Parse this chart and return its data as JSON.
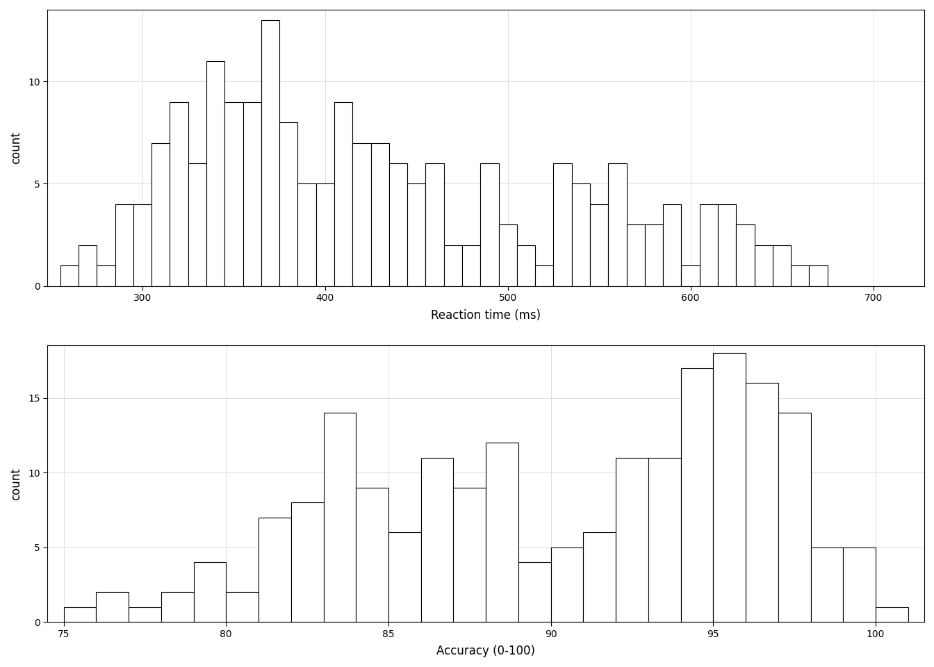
{
  "rt_bin_edges": [
    255,
    265,
    275,
    285,
    295,
    305,
    315,
    325,
    335,
    345,
    355,
    365,
    375,
    385,
    395,
    405,
    415,
    425,
    435,
    445,
    455,
    465,
    475,
    485,
    495,
    505,
    515,
    525,
    535,
    545,
    555,
    565,
    575,
    585,
    595,
    605,
    615,
    625,
    635,
    645,
    655,
    665,
    675,
    685,
    695,
    705,
    715,
    725
  ],
  "rt_counts": [
    1,
    2,
    1,
    4,
    4,
    7,
    9,
    6,
    11,
    9,
    9,
    13,
    8,
    5,
    5,
    9,
    7,
    7,
    6,
    5,
    6,
    2,
    2,
    6,
    3,
    2,
    1,
    6,
    5,
    4,
    6,
    3,
    3,
    4,
    1,
    4,
    4,
    3,
    2,
    2,
    1,
    1,
    0,
    0,
    0,
    0,
    0
  ],
  "acc_bin_edges": [
    75,
    76,
    77,
    78,
    79,
    80,
    81,
    82,
    83,
    84,
    85,
    86,
    87,
    88,
    89,
    90,
    91,
    92,
    93,
    94,
    95,
    96,
    97,
    98,
    99,
    100,
    101
  ],
  "acc_counts": [
    1,
    2,
    1,
    2,
    4,
    2,
    7,
    8,
    14,
    9,
    6,
    11,
    9,
    12,
    4,
    5,
    6,
    11,
    11,
    17,
    18,
    16,
    14,
    5,
    5,
    1
  ],
  "rt_xlabel": "Reaction time (ms)",
  "acc_xlabel": "Accuracy (0-100)",
  "ylabel": "count",
  "rt_xlim": [
    248,
    728
  ],
  "rt_ylim": [
    0,
    13.5
  ],
  "acc_xlim": [
    74.5,
    101.5
  ],
  "acc_ylim": [
    0,
    18.5
  ],
  "rt_xticks": [
    300,
    400,
    500,
    600,
    700
  ],
  "acc_xticks": [
    75,
    80,
    85,
    90,
    95,
    100
  ],
  "rt_yticks": [
    0,
    5,
    10
  ],
  "acc_yticks": [
    0,
    5,
    10,
    15
  ],
  "bar_facecolor": "#ffffff",
  "bar_edgecolor": "#000000",
  "grid_color": "#d9d9d9",
  "background_color": "#ffffff",
  "panel_background": "#ffffff",
  "xlabel_fontsize": 12,
  "ylabel_fontsize": 12,
  "tick_fontsize": 10,
  "bar_linewidth": 0.8,
  "figure_width": 13.44,
  "figure_height": 9.6
}
